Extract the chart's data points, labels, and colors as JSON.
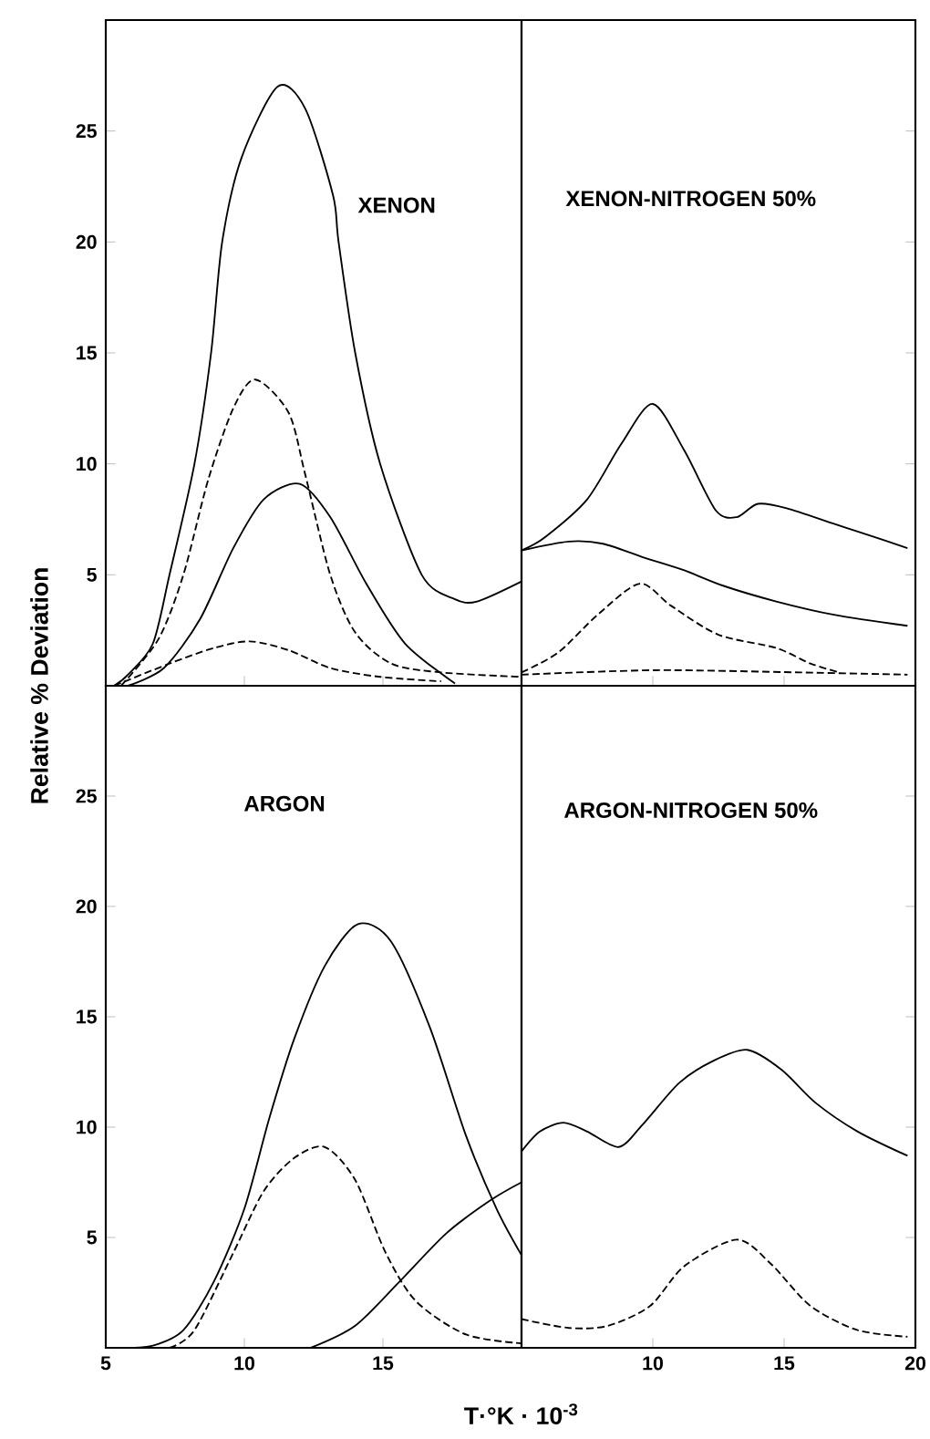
{
  "chart_data": [
    {
      "type": "line",
      "title": "XENON",
      "ylabel": "Relative % Deviation",
      "xlim": [
        5,
        20
      ],
      "ylim": [
        0,
        30
      ],
      "xticks": [
        10,
        15
      ],
      "yticks": [
        5,
        10,
        15,
        20,
        25
      ],
      "tick_labels": "y",
      "series": [
        {
          "color": "#000000",
          "line_style": "solid",
          "x": [
            5.3,
            5.8,
            6.7,
            7.3,
            8.2,
            8.8,
            9.2,
            9.9,
            11.2,
            12.2,
            13.2,
            13.4,
            14.0,
            14.9,
            16.4,
            17.6,
            18.4,
            20.0
          ],
          "values": [
            0,
            0.5,
            1.9,
            5.0,
            10.0,
            15.0,
            20.0,
            23.8,
            27.0,
            26.0,
            22.1,
            20.0,
            15.0,
            10.0,
            5.0,
            3.9,
            3.8,
            4.7
          ]
        },
        {
          "color": "#000000",
          "line_style": "dashed",
          "x": [
            5.55,
            6.9,
            7.8,
            8.7,
            9.6,
            10.4,
            11.6,
            12.2,
            13.1,
            14.0,
            15.3,
            17.1,
            20.0
          ],
          "values": [
            0,
            2.1,
            5.0,
            9.3,
            12.5,
            13.8,
            12.3,
            9.5,
            5.0,
            2.4,
            1.0,
            0.6,
            0.4
          ]
        },
        {
          "color": "#000000",
          "line_style": "solid",
          "x": [
            5.8,
            7.1,
            8.4,
            9.6,
            10.7,
            12.0,
            13.1,
            14.4,
            15.8,
            17.6
          ],
          "values": [
            0,
            0.8,
            3.0,
            6.2,
            8.4,
            9.1,
            7.6,
            4.6,
            1.9,
            0.1
          ]
        },
        {
          "color": "#000000",
          "line_style": "dashed",
          "x": [
            5.3,
            7.3,
            8.9,
            10.2,
            11.6,
            13.1,
            14.9,
            17.1
          ],
          "values": [
            0,
            1.0,
            1.7,
            2.0,
            1.6,
            0.8,
            0.4,
            0.2
          ]
        }
      ]
    },
    {
      "type": "line",
      "title": "XENON-NITROGEN 50%",
      "xlim": [
        5,
        20
      ],
      "ylim": [
        0,
        30
      ],
      "xticks": [
        10,
        15
      ],
      "yticks": [
        5,
        10,
        15,
        20,
        25
      ],
      "tick_labels": false,
      "series": [
        {
          "color": "#000000",
          "line_style": "solid",
          "x": [
            5,
            5.9,
            7.5,
            8.8,
            10.0,
            11.2,
            12.4,
            13.2,
            14.0,
            15.1,
            16.9,
            18.2,
            19.7
          ],
          "values": [
            6.1,
            6.7,
            8.4,
            10.9,
            12.7,
            10.6,
            7.9,
            7.6,
            8.2,
            8.0,
            7.3,
            6.8,
            6.2
          ]
        },
        {
          "color": "#000000",
          "line_style": "solid",
          "x": [
            5,
            6.8,
            8.1,
            9.6,
            11.2,
            12.7,
            14.7,
            16.9,
            19.7
          ],
          "values": [
            6.1,
            6.5,
            6.4,
            5.8,
            5.2,
            4.5,
            3.8,
            3.2,
            2.7
          ]
        },
        {
          "color": "#000000",
          "line_style": "dashed",
          "x": [
            5,
            6.4,
            7.9,
            9.5,
            10.7,
            12.5,
            14.7,
            16.0,
            17.1
          ],
          "values": [
            0.6,
            1.5,
            3.2,
            4.6,
            3.6,
            2.3,
            1.7,
            1.0,
            0.6
          ]
        },
        {
          "color": "#000000",
          "line_style": "dashed",
          "x": [
            5,
            10.1,
            15.6,
            19.7
          ],
          "values": [
            0.5,
            0.7,
            0.6,
            0.5
          ]
        }
      ]
    },
    {
      "type": "line",
      "title": "ARGON",
      "xlabel": "T·°K · 10$^{-3}$",
      "xlim": [
        5,
        20
      ],
      "ylim": [
        0,
        30
      ],
      "xticks": [
        5,
        10,
        15
      ],
      "yticks": [
        5,
        10,
        15,
        20,
        25
      ],
      "series": [
        {
          "color": "#000000",
          "line_style": "solid",
          "x": [
            5.6,
            6.7,
            7.8,
            8.9,
            10.0,
            10.9,
            11.8,
            12.9,
            14.1,
            15.3,
            16.7,
            18.0,
            19.1,
            20.0
          ],
          "values": [
            0,
            0.1,
            0.8,
            3.0,
            6.3,
            10.4,
            14.0,
            17.3,
            19.2,
            18.4,
            14.5,
            9.6,
            6.3,
            4.2
          ]
        },
        {
          "color": "#000000",
          "line_style": "dashed",
          "x": [
            7.3,
            8.2,
            9.6,
            10.7,
            11.8,
            12.9,
            14.0,
            15.1,
            16.2,
            18.0,
            20.0
          ],
          "values": [
            0,
            0.8,
            4.3,
            7.1,
            8.6,
            9.1,
            7.6,
            4.3,
            2.1,
            0.6,
            0.2
          ]
        },
        {
          "color": "#000000",
          "line_style": "solid",
          "x": [
            12.4,
            14.0,
            15.6,
            17.3,
            18.9,
            20.0
          ],
          "values": [
            0,
            1.0,
            3.0,
            5.2,
            6.7,
            7.5
          ]
        }
      ]
    },
    {
      "type": "line",
      "title": "ARGON-NITROGEN 50%",
      "xlim": [
        5,
        20
      ],
      "ylim": [
        0,
        30
      ],
      "xticks": [
        10,
        15,
        20
      ],
      "yticks": [
        5,
        10,
        15,
        20,
        25
      ],
      "tick_labels": "x",
      "series": [
        {
          "color": "#000000",
          "line_style": "solid",
          "x": [
            5,
            5.7,
            6.6,
            7.5,
            8.7,
            9.6,
            11.0,
            12.3,
            13.6,
            14.9,
            16.2,
            17.8,
            19.7
          ],
          "values": [
            8.9,
            9.8,
            10.2,
            9.8,
            9.1,
            10.1,
            12.0,
            13.0,
            13.5,
            12.6,
            11.1,
            9.8,
            8.7
          ]
        },
        {
          "color": "#000000",
          "line_style": "dashed",
          "x": [
            5,
            6.8,
            8.3,
            9.9,
            11.2,
            13.2,
            14.5,
            16.0,
            17.8,
            19.7
          ],
          "values": [
            1.3,
            0.9,
            1.0,
            1.9,
            3.7,
            4.9,
            3.8,
            1.9,
            0.8,
            0.5
          ]
        }
      ]
    }
  ]
}
